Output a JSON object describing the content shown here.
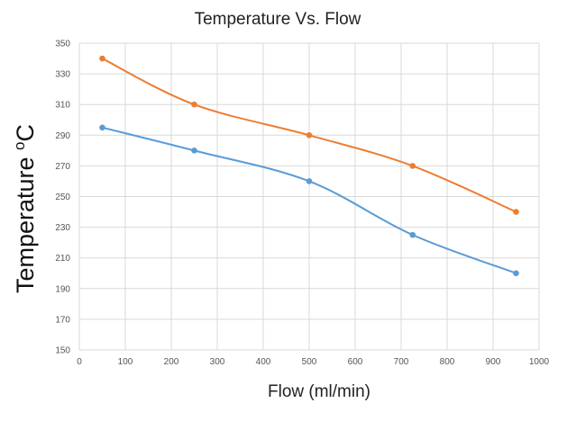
{
  "chart_data": {
    "type": "line",
    "title": "Temperature Vs. Flow",
    "xlabel": "Flow (ml/min)",
    "ylabel": "Temperature ",
    "ylabel_unit": "C",
    "ylabel_superscript": "o",
    "xlim": [
      0,
      1000
    ],
    "ylim": [
      150,
      350
    ],
    "x_ticks": [
      0,
      100,
      200,
      300,
      400,
      500,
      600,
      700,
      800,
      900,
      1000
    ],
    "y_ticks": [
      150,
      170,
      190,
      210,
      230,
      250,
      270,
      290,
      310,
      330,
      350
    ],
    "grid": true,
    "smooth": true,
    "series": [
      {
        "color": "#ED7D31",
        "x": [
          50,
          250,
          500,
          725,
          950
        ],
        "y": [
          340,
          310,
          290,
          270,
          240
        ]
      },
      {
        "color": "#5B9BD5",
        "x": [
          50,
          250,
          500,
          725,
          950
        ],
        "y": [
          295,
          280,
          260,
          225,
          200
        ]
      }
    ]
  }
}
